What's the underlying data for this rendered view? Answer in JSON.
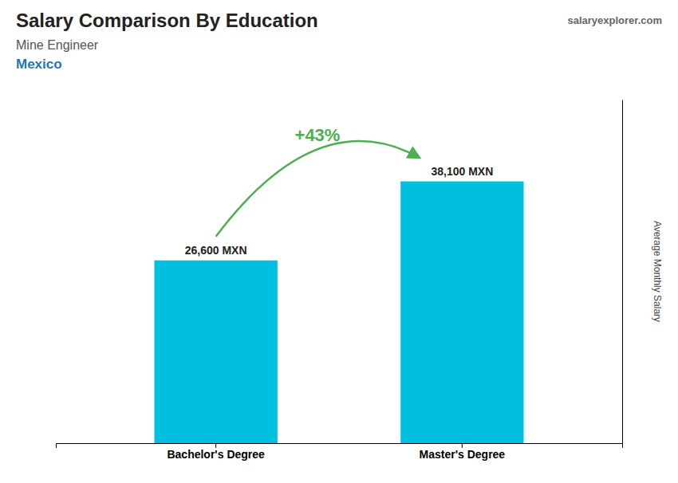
{
  "chart_data": {
    "type": "bar",
    "title": "Salary Comparison By Education",
    "subtitle": [
      "Mine Engineer",
      "Mexico"
    ],
    "ylabel": "Average Monthly Salary",
    "annotations": [
      "+43%",
      "salaryexplorer.com"
    ],
    "categories": [
      "Bachelor's Degree",
      "Master's Degree"
    ],
    "values": [
      26600,
      38100
    ],
    "value_labels": [
      "26,600 MXN",
      "38,100 MXN"
    ],
    "data_labels": true,
    "color": "#00BFDF",
    "ylim": [
      0,
      50000
    ],
    "tick_labels": "x",
    "grid": false
  }
}
